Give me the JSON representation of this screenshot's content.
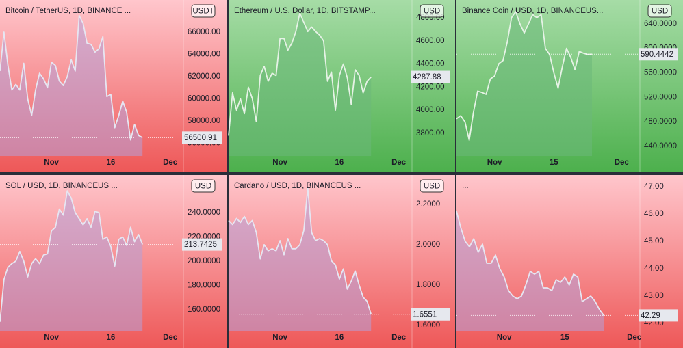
{
  "chart_data": [
    {
      "type": "line",
      "title": "Bitcoin / TetherUS, 1D, BINANCE ...",
      "currency": "USDT",
      "color": "#e6e6f2",
      "fill": "#b4a0d8",
      "background": [
        "#ffc6cc",
        "#ee5858"
      ],
      "categories": [
        null,
        null,
        null,
        null,
        null,
        null,
        null,
        null,
        null,
        null,
        null,
        null,
        null,
        "Nov",
        null,
        null,
        null,
        null,
        null,
        null,
        null,
        null,
        null,
        null,
        null,
        null,
        null,
        null,
        "16",
        null,
        null,
        null,
        null,
        null,
        null,
        null,
        null,
        null,
        null,
        null,
        null,
        null,
        null,
        "Dec",
        null,
        null,
        null
      ],
      "values": [
        62500,
        66000,
        63000,
        60800,
        61300,
        60800,
        63200,
        60000,
        58500,
        60800,
        62300,
        61800,
        61000,
        63300,
        63000,
        61600,
        61200,
        62000,
        63500,
        62500,
        67500,
        66800,
        65000,
        64900,
        64200,
        64500,
        65600,
        60200,
        60400,
        57400,
        58500,
        59800,
        58800,
        56300,
        57700,
        56700,
        56500.91,
        null,
        null,
        null,
        null,
        null,
        null,
        null,
        null,
        null,
        null
      ],
      "ylim": [
        54860,
        68400
      ],
      "yticks": [
        {
          "value": 56000,
          "label": "56000.00"
        },
        {
          "value": 58000,
          "label": "58000.00"
        },
        {
          "value": 60000,
          "label": "60000.00"
        },
        {
          "value": 62000,
          "label": "62000.00"
        },
        {
          "value": 64000,
          "label": "64000.00"
        },
        {
          "value": 66000,
          "label": "66000.00"
        }
      ]
    },
    {
      "type": "line",
      "title": "Ethereum / U.S. Dollar, 1D, BITSTAMP...",
      "currency": "USD",
      "color": "#e6f2e6",
      "fill": "#6cb87a",
      "background": [
        "#a6dca6",
        "#4db04d"
      ],
      "categories": [
        null,
        null,
        null,
        null,
        null,
        null,
        null,
        null,
        null,
        null,
        null,
        null,
        null,
        "Nov",
        null,
        null,
        null,
        null,
        null,
        null,
        null,
        null,
        null,
        null,
        null,
        null,
        null,
        null,
        "16",
        null,
        null,
        null,
        null,
        null,
        null,
        null,
        null,
        null,
        null,
        null,
        null,
        null,
        null,
        "Dec",
        null,
        null,
        null
      ],
      "values": [
        3780,
        4150,
        4000,
        4100,
        3970,
        4200,
        4100,
        3900,
        4300,
        4380,
        4250,
        4320,
        4300,
        4620,
        4620,
        4520,
        4580,
        4680,
        4840,
        4760,
        4680,
        4720,
        4680,
        4650,
        4600,
        4250,
        4330,
        4000,
        4300,
        4400,
        4280,
        4050,
        4350,
        4300,
        4150,
        4250,
        4287.88,
        null,
        null,
        null,
        null,
        null,
        null,
        null,
        null,
        null,
        null
      ],
      "ylim": [
        3605,
        4906
      ],
      "yticks": [
        {
          "value": 3800,
          "label": "3800.00"
        },
        {
          "value": 4000,
          "label": "4000.00"
        },
        {
          "value": 4200,
          "label": "4200.00"
        },
        {
          "value": 4400,
          "label": "4400.00"
        },
        {
          "value": 4600,
          "label": "4600.00"
        },
        {
          "value": 4800,
          "label": "4800.00"
        }
      ]
    },
    {
      "type": "line",
      "title": "Binance Coin / USD, 1D, BINANCEUS...",
      "currency": "USD",
      "color": "#e6f2e6",
      "fill": "#6cb87a",
      "background": [
        "#a6dca6",
        "#4db04d"
      ],
      "categories": [
        null,
        null,
        null,
        null,
        null,
        null,
        null,
        null,
        null,
        "Nov",
        null,
        null,
        null,
        null,
        null,
        null,
        null,
        null,
        null,
        null,
        null,
        null,
        null,
        "15",
        null,
        null,
        null,
        null,
        null,
        null,
        null,
        null,
        null,
        null,
        null,
        null,
        null,
        null,
        null,
        "Dec",
        null,
        null,
        null,
        null
      ],
      "values": [
        485,
        490,
        480,
        450,
        495,
        530,
        528,
        525,
        550,
        555,
        575,
        580,
        610,
        650,
        660,
        640,
        625,
        640,
        655,
        650,
        655,
        600,
        590,
        560,
        535,
        570,
        600,
        585,
        565,
        595,
        592,
        590,
        590.4442,
        null,
        null,
        null,
        null,
        null,
        null,
        null,
        null,
        null,
        null,
        null
      ],
      "ylim": [
        424.4,
        670
      ],
      "yticks": [
        {
          "value": 440,
          "label": "440.0000"
        },
        {
          "value": 480,
          "label": "480.0000"
        },
        {
          "value": 520,
          "label": "520.0000"
        },
        {
          "value": 560,
          "label": "560.0000"
        },
        {
          "value": 600,
          "label": "600.0000"
        },
        {
          "value": 640,
          "label": "640.0000"
        }
      ]
    },
    {
      "type": "line",
      "title": "SOL / USD, 1D, BINANCEUS ...",
      "currency": "USD",
      "color": "#e6e6f2",
      "fill": "#b4a0d8",
      "background": [
        "#ffc6cc",
        "#ee5858"
      ],
      "categories": [
        null,
        null,
        null,
        null,
        null,
        null,
        null,
        null,
        null,
        null,
        null,
        null,
        null,
        "Nov",
        null,
        null,
        null,
        null,
        null,
        null,
        null,
        null,
        null,
        null,
        null,
        null,
        null,
        null,
        "16",
        null,
        null,
        null,
        null,
        null,
        null,
        null,
        null,
        null,
        null,
        null,
        null,
        null,
        null,
        "Dec",
        null,
        null,
        null
      ],
      "values": [
        150,
        185,
        195,
        198,
        200,
        208,
        200,
        187,
        198,
        202,
        198,
        205,
        206,
        225,
        228,
        243,
        238,
        258,
        252,
        240,
        235,
        230,
        235,
        228,
        241,
        240,
        218,
        220,
        212,
        196,
        218,
        220,
        213,
        228,
        216,
        222,
        213.7425,
        null,
        null,
        null,
        null,
        null,
        null,
        null,
        null,
        null,
        null
      ],
      "ylim": [
        142.5,
        266.5
      ],
      "yticks": [
        {
          "value": 160,
          "label": "160.0000"
        },
        {
          "value": 180,
          "label": "180.0000"
        },
        {
          "value": 200,
          "label": "200.0000"
        },
        {
          "value": 220,
          "label": "220.0000"
        },
        {
          "value": 240,
          "label": "240.0000"
        }
      ]
    },
    {
      "type": "line",
      "title": "Cardano / USD, 1D, BINANCEUS ...",
      "currency": "USD",
      "color": "#e6e6f2",
      "fill": "#b4a0d8",
      "background": [
        "#ffc6cc",
        "#ee5858"
      ],
      "categories": [
        null,
        null,
        null,
        null,
        null,
        null,
        null,
        null,
        null,
        null,
        null,
        null,
        null,
        "Nov",
        null,
        null,
        null,
        null,
        null,
        null,
        null,
        null,
        null,
        null,
        null,
        null,
        null,
        null,
        "16",
        null,
        null,
        null,
        null,
        null,
        null,
        null,
        null,
        null,
        null,
        null,
        null,
        null,
        null,
        "Dec",
        null,
        null,
        null
      ],
      "values": [
        2.12,
        2.1,
        2.13,
        2.11,
        2.14,
        2.1,
        2.12,
        2.06,
        1.93,
        2.0,
        1.97,
        1.98,
        1.97,
        2.02,
        1.95,
        2.03,
        1.98,
        1.98,
        2.0,
        2.07,
        2.28,
        2.06,
        2.02,
        2.03,
        2.02,
        2.0,
        1.92,
        1.9,
        1.83,
        1.88,
        1.78,
        1.82,
        1.87,
        1.8,
        1.74,
        1.72,
        1.6551,
        null,
        null,
        null,
        null,
        null,
        null,
        null,
        null,
        null,
        null
      ],
      "ylim": [
        1.573,
        2.318
      ],
      "yticks": [
        {
          "value": 1.6,
          "label": "1.6000"
        },
        {
          "value": 1.8,
          "label": "1.8000"
        },
        {
          "value": 2.0,
          "label": "2.0000"
        },
        {
          "value": 2.2,
          "label": "2.2000"
        }
      ]
    },
    {
      "type": "line",
      "title": "...",
      "color": "#e6e6f2",
      "fill": "#b4a0d8",
      "background": [
        "#ffc6cc",
        "#ee5858"
      ],
      "categories": [
        null,
        null,
        null,
        null,
        null,
        null,
        null,
        null,
        null,
        null,
        null,
        "Nov",
        null,
        null,
        null,
        null,
        null,
        null,
        null,
        null,
        null,
        null,
        null,
        null,
        null,
        "15",
        null,
        null,
        null,
        null,
        null,
        null,
        null,
        null,
        null,
        null,
        null,
        null,
        null,
        null,
        null,
        "Dec",
        null
      ],
      "values": [
        46.1,
        45.5,
        45.0,
        44.8,
        45.1,
        44.6,
        44.9,
        44.2,
        44.2,
        44.5,
        44.0,
        43.7,
        43.2,
        43.0,
        42.9,
        43.0,
        43.4,
        43.9,
        43.8,
        43.9,
        43.3,
        43.3,
        43.2,
        43.6,
        43.5,
        43.7,
        43.4,
        43.8,
        43.7,
        42.8,
        42.9,
        43.0,
        42.8,
        42.5,
        42.29,
        null,
        null,
        null,
        null,
        null,
        null,
        null,
        null
      ],
      "ylim": [
        41.725,
        47.225
      ],
      "yticks": [
        {
          "value": 42,
          "label": "42.00"
        },
        {
          "value": 43,
          "label": "43.00"
        },
        {
          "value": 44,
          "label": "44.00"
        },
        {
          "value": 45,
          "label": "45.00"
        },
        {
          "value": 46,
          "label": "46.00"
        },
        {
          "value": 47,
          "label": "47.00"
        }
      ]
    }
  ]
}
